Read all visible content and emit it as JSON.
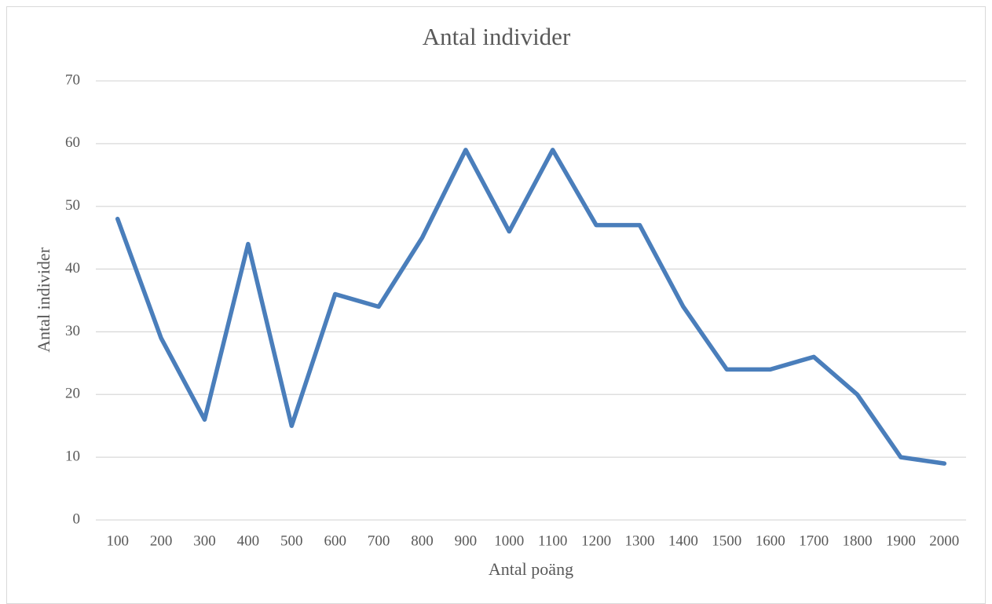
{
  "chart_data": {
    "type": "line",
    "title": "Antal individer",
    "x_label": "Antal poäng",
    "y_label": "Antal individer",
    "categories": [
      "100",
      "200",
      "300",
      "400",
      "500",
      "600",
      "700",
      "800",
      "900",
      "1000",
      "1100",
      "1200",
      "1300",
      "1400",
      "1500",
      "1600",
      "1700",
      "1800",
      "1900",
      "2000"
    ],
    "series": [
      {
        "name": "Antal individer",
        "color": "#4a7ebb",
        "values": [
          48,
          29,
          16,
          44,
          15,
          36,
          34,
          45,
          59,
          46,
          59,
          47,
          47,
          34,
          24,
          24,
          26,
          20,
          10,
          9
        ]
      }
    ],
    "ylim": [
      0,
      70
    ],
    "yticks": [
      0,
      10,
      20,
      30,
      40,
      50,
      60,
      70
    ],
    "grid": true
  }
}
